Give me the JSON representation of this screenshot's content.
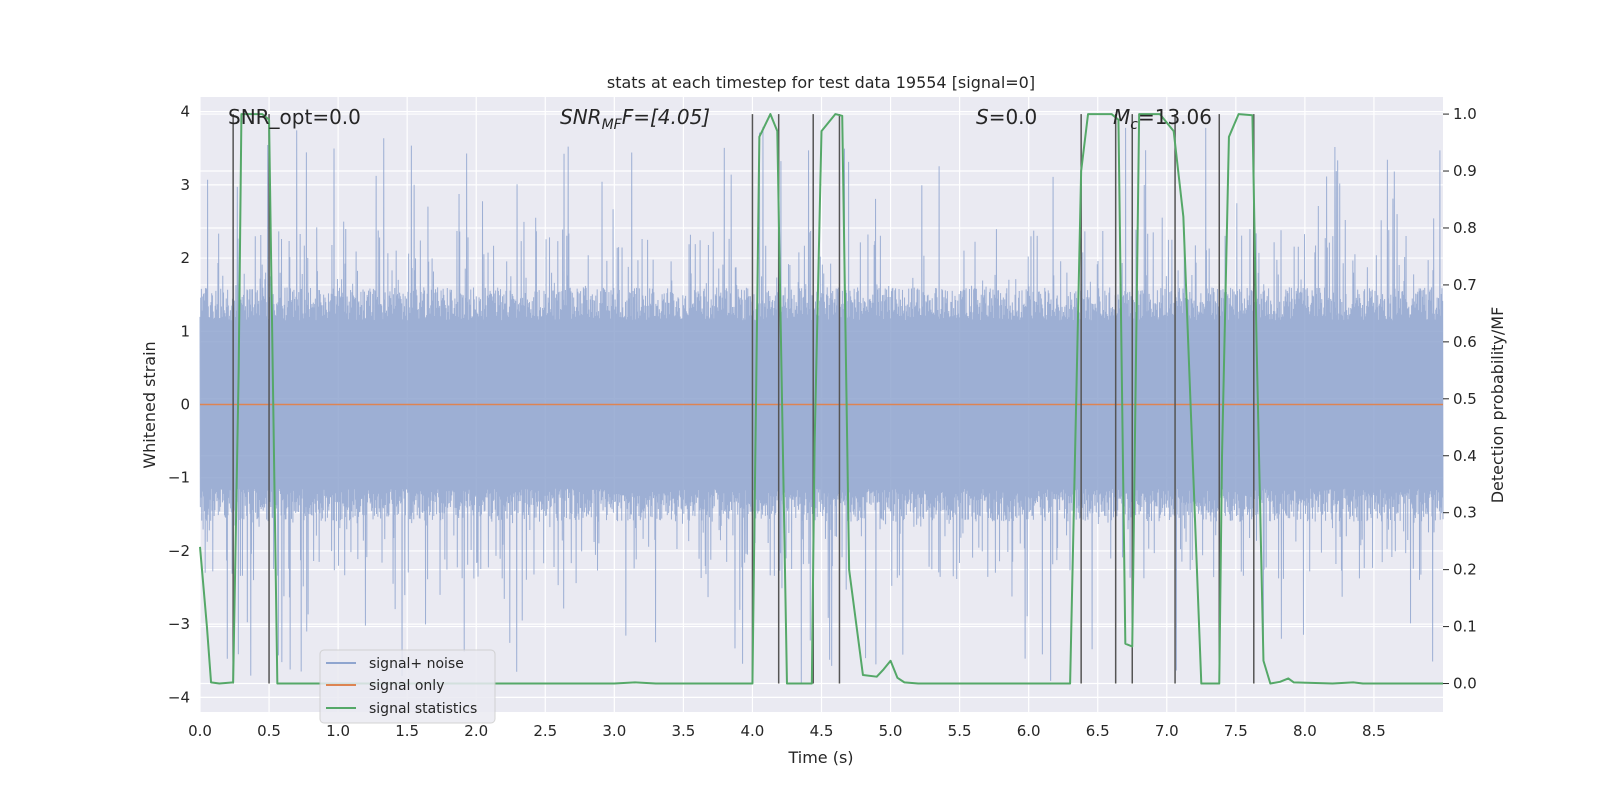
{
  "chart_data": {
    "type": "line",
    "title": "stats at each timestep for test data 19554 [signal=0]",
    "xlabel": "Time (s)",
    "ylabel_left": "Whitened strain",
    "ylabel_right": "Detection probability/MF",
    "xlim": [
      0,
      9.0
    ],
    "ylim_left": [
      -4.2,
      4.2
    ],
    "ylim_right": [
      -0.05,
      1.03
    ],
    "x_ticks": [
      "0.0",
      "0.5",
      "1.0",
      "1.5",
      "2.0",
      "2.5",
      "3.0",
      "3.5",
      "4.0",
      "4.5",
      "5.0",
      "5.5",
      "6.0",
      "6.5",
      "7.0",
      "7.5",
      "8.0",
      "8.5"
    ],
    "y_left_ticks": [
      "4",
      "3",
      "2",
      "1",
      "0",
      "−1",
      "−2",
      "−3",
      "−4"
    ],
    "y_right_ticks": [
      "1.0",
      "0.9",
      "0.8",
      "0.7",
      "0.6",
      "0.5",
      "0.4",
      "0.3",
      "0.2",
      "0.1",
      "0.0"
    ],
    "annotations": {
      "snr_opt": "SNR_opt=0.0",
      "snr_mf_prefix": "SNR",
      "snr_mf_sub": "MF",
      "snr_mf_suffix": "F=[4.05]",
      "s_symbol": "S",
      "s_value": "=0.0",
      "mc_symbol": "M",
      "mc_sub": "c",
      "mc_value": "=13.06"
    },
    "legend": {
      "placement": "lower-left",
      "entries": [
        {
          "label": "signal+ noise",
          "color": "#8fa5cf"
        },
        {
          "label": "signal only",
          "color": "#dd8452"
        },
        {
          "label": "signal statistics",
          "color": "#55a868"
        }
      ]
    },
    "series": [
      {
        "name": "signal+ noise",
        "color": "#8fa5cf",
        "style": "dense whitened noise, approx. +/-1.5 band with spikes up to ~3.8 and down to ~-3.9"
      },
      {
        "name": "signal only",
        "color": "#dd8452",
        "x": [
          0,
          9.0
        ],
        "y": [
          0,
          0
        ]
      },
      {
        "name": "signal statistics",
        "color": "#55a868",
        "x": [
          0.0,
          0.05,
          0.08,
          0.14,
          0.24,
          0.28,
          0.3,
          0.45,
          0.5,
          0.56,
          0.6,
          0.7,
          1.0,
          3.0,
          3.15,
          3.3,
          4.0,
          4.05,
          4.13,
          4.18,
          4.25,
          4.43,
          4.45,
          4.5,
          4.6,
          4.65,
          4.7,
          4.8,
          4.9,
          4.95,
          5.0,
          5.05,
          5.1,
          5.2,
          6.3,
          6.38,
          6.43,
          6.6,
          6.65,
          6.7,
          6.75,
          6.8,
          6.95,
          7.05,
          7.12,
          7.25,
          7.38,
          7.4,
          7.45,
          7.52,
          7.62,
          7.65,
          7.7,
          7.75,
          7.82,
          7.88,
          7.92,
          8.2,
          8.35,
          8.42,
          9.0
        ],
        "y": [
          0.24,
          0.1,
          0.002,
          0.0,
          0.002,
          0.55,
          1.0,
          1.0,
          0.99,
          0.0,
          0.0,
          0.0,
          0.0,
          0.0,
          0.002,
          0.0,
          0.0,
          0.96,
          1.0,
          0.97,
          0.0,
          0.0,
          0.42,
          0.97,
          1.0,
          0.997,
          0.2,
          0.015,
          0.012,
          0.025,
          0.04,
          0.01,
          0.002,
          0.0,
          0.0,
          0.9,
          1.0,
          1.0,
          0.99,
          0.07,
          0.065,
          1.0,
          1.0,
          0.97,
          0.82,
          0.0,
          0.0,
          0.4,
          0.96,
          1.0,
          0.998,
          0.6,
          0.04,
          0.0,
          0.003,
          0.009,
          0.002,
          0.0,
          0.002,
          0.0,
          0.0
        ]
      }
    ],
    "vertical_markers": [
      0.24,
      0.5,
      4.0,
      4.19,
      4.44,
      4.63,
      6.38,
      6.63,
      6.75,
      7.06,
      7.38,
      7.63
    ]
  }
}
